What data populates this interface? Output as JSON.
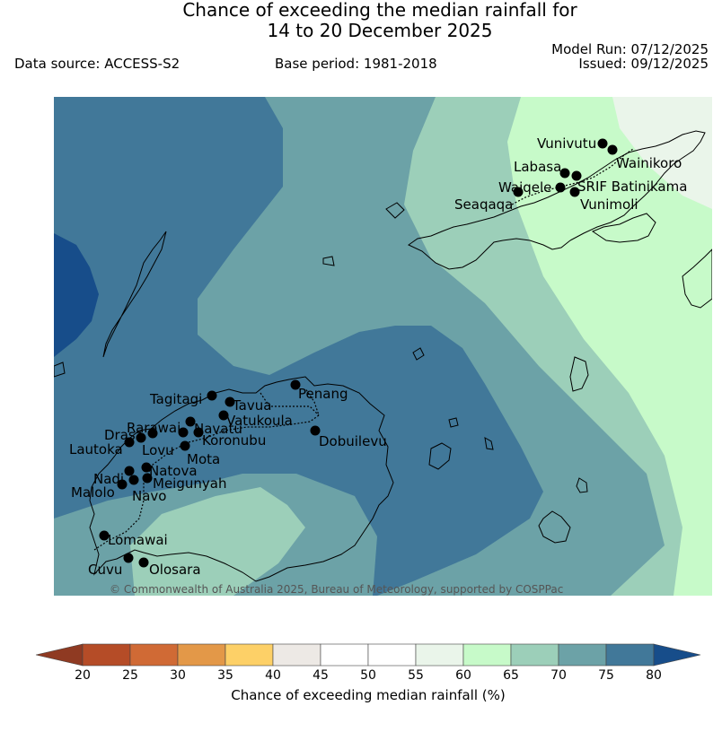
{
  "header": {
    "title_line1": "Chance of exceeding the median rainfall for",
    "title_line2": "14 to 20 December 2025",
    "data_source": "Data source: ACCESS-S2",
    "base_period": "Base period: 1981-2018",
    "model_run": "Model Run: 07/12/2025",
    "issued": "Issued: 09/12/2025"
  },
  "map": {
    "copyright": "© Commonwealth of Australia 2025, Bureau of Meteorology, supported by COSPPac",
    "category_colors": {
      "55-60": "#eaf5ea",
      "60-65": "#c7fac9",
      "65-70": "#9ccfb9",
      "70-75": "#6ca2a7",
      "75-80": "#417899",
      "80+": "#174d8a"
    },
    "towns": [
      {
        "name": "Vunivutu"
      },
      {
        "name": "Wainikoro"
      },
      {
        "name": "Labasa"
      },
      {
        "name": "Waiqele"
      },
      {
        "name": "SRIF Batinikama"
      },
      {
        "name": "Seaqaqa"
      },
      {
        "name": "Vunimoli"
      },
      {
        "name": "Penang"
      },
      {
        "name": "Tagitagi"
      },
      {
        "name": "Tavua"
      },
      {
        "name": "Vatukoula"
      },
      {
        "name": "Rarawai"
      },
      {
        "name": "Navatu"
      },
      {
        "name": "Drasa"
      },
      {
        "name": "Koronubu"
      },
      {
        "name": "Dobuilevu"
      },
      {
        "name": "Lautoka"
      },
      {
        "name": "Lovu"
      },
      {
        "name": "Mota"
      },
      {
        "name": "Natova"
      },
      {
        "name": "Nadi"
      },
      {
        "name": "Meigunyah"
      },
      {
        "name": "Malolo"
      },
      {
        "name": "Navo"
      },
      {
        "name": "Lomawai"
      },
      {
        "name": "Cuvu"
      },
      {
        "name": "Olosara"
      }
    ]
  },
  "colorbar": {
    "label": "Chance of exceeding median rainfall (%)",
    "ticks": [
      "20",
      "25",
      "30",
      "35",
      "40",
      "45",
      "50",
      "55",
      "60",
      "65",
      "70",
      "75",
      "80"
    ],
    "bins": [
      {
        "range": "<20",
        "color": "#8f3a22"
      },
      {
        "range": "20-25",
        "color": "#b54c27"
      },
      {
        "range": "25-30",
        "color": "#d06a35"
      },
      {
        "range": "30-35",
        "color": "#e39848"
      },
      {
        "range": "35-40",
        "color": "#fdd067"
      },
      {
        "range": "40-45",
        "color": "#ede9e5"
      },
      {
        "range": "45-50",
        "color": "#ffffff"
      },
      {
        "range": "50-55",
        "color": "#ffffff"
      },
      {
        "range": "55-60",
        "color": "#eaf5ea"
      },
      {
        "range": "60-65",
        "color": "#c7fac9"
      },
      {
        "range": "65-70",
        "color": "#9ccfb9"
      },
      {
        "range": "70-75",
        "color": "#6ca2a7"
      },
      {
        "range": "75-80",
        "color": "#417899"
      },
      {
        "range": ">80",
        "color": "#174d8a"
      }
    ]
  }
}
